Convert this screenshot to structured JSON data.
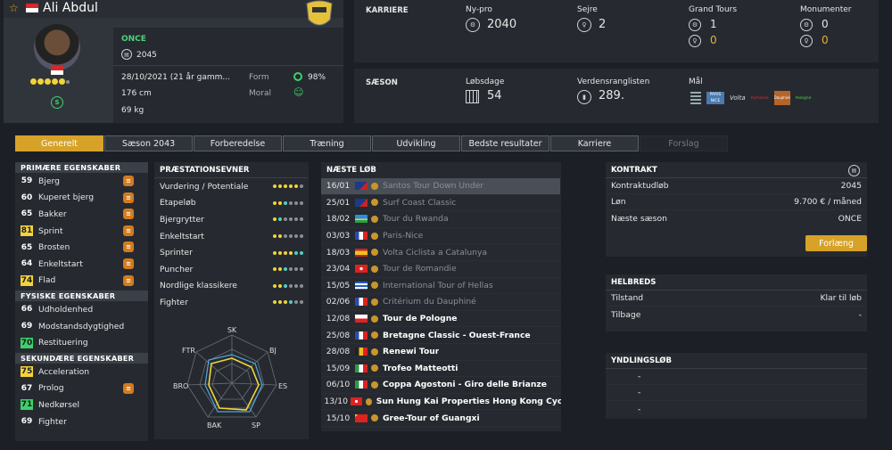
{
  "rider": {
    "name": "Ali Abdul",
    "team": "ONCE",
    "contract_year": "2045",
    "birth": "28/10/2021 (21 år gamm...",
    "height": "176 cm",
    "weight": "69 kg",
    "form_label": "Form",
    "form_value": "98%",
    "moral_label": "Moral"
  },
  "career": {
    "title": "KARRIERE",
    "newpro_label": "Ny-pro",
    "newpro_value": "2040",
    "wins_label": "Sejre",
    "wins_value": "2",
    "grandtours_label": "Grand Tours",
    "grandtours_a": "1",
    "grandtours_b": "0",
    "monuments_label": "Monumenter",
    "monuments_a": "0",
    "monuments_b": "0"
  },
  "season": {
    "title": "SÆSON",
    "racedays_label": "Løbsdage",
    "racedays_value": "54",
    "ranking_label": "Verdensranglisten",
    "ranking_value": "289.",
    "goals_label": "Mål"
  },
  "tabs": [
    "Generelt",
    "Sæson 2043",
    "Forberedelse",
    "Træning",
    "Udvikling",
    "Bedste resultater",
    "Karriere",
    "Forslag"
  ],
  "attributes": {
    "primary_title": "PRIMÆRE EGENSKABER",
    "primary": [
      {
        "value": "59",
        "label": "Bjerg"
      },
      {
        "value": "60",
        "label": "Kuperet bjerg"
      },
      {
        "value": "65",
        "label": "Bakker"
      },
      {
        "value": "81",
        "label": "Sprint"
      },
      {
        "value": "65",
        "label": "Brosten"
      },
      {
        "value": "64",
        "label": "Enkeltstart"
      },
      {
        "value": "74",
        "label": "Flad"
      }
    ],
    "physical_title": "FYSISKE EGENSKABER",
    "physical": [
      {
        "value": "66",
        "label": "Udholdenhed"
      },
      {
        "value": "69",
        "label": "Modstandsdygtighed"
      },
      {
        "value": "70",
        "label": "Restituering"
      }
    ],
    "secondary_title": "SEKUNDÆRE EGENSKABER",
    "secondary": [
      {
        "value": "75",
        "label": "Acceleration"
      },
      {
        "value": "67",
        "label": "Prolog"
      },
      {
        "value": "71",
        "label": "Nedkørsel"
      },
      {
        "value": "69",
        "label": "Fighter"
      }
    ]
  },
  "performance": {
    "title": "PRÆSTATIONSEVNER",
    "rows": [
      "Vurdering / Potentiale",
      "Etapeløb",
      "Bjergrytter",
      "Enkeltstart",
      "Sprinter",
      "Puncher",
      "Nordlige klassikere",
      "Fighter"
    ],
    "radar_labels": [
      "SK",
      "BJ",
      "ES",
      "SP",
      "BAK",
      "BRO",
      "FTR"
    ]
  },
  "races": {
    "title": "NÆSTE LØB",
    "items": [
      {
        "date": "16/01",
        "name": "Santos Tour Down Under"
      },
      {
        "date": "25/01",
        "name": "Surf Coast Classic"
      },
      {
        "date": "18/02",
        "name": "Tour du Rwanda"
      },
      {
        "date": "03/03",
        "name": "Paris-Nice"
      },
      {
        "date": "18/03",
        "name": "Volta Ciclista a Catalunya"
      },
      {
        "date": "23/04",
        "name": "Tour de Romandie"
      },
      {
        "date": "15/05",
        "name": "International Tour of Hellas"
      },
      {
        "date": "02/06",
        "name": "Critérium du Dauphiné"
      },
      {
        "date": "12/08",
        "name": "Tour de Pologne"
      },
      {
        "date": "25/08",
        "name": "Bretagne Classic - Ouest-France"
      },
      {
        "date": "28/08",
        "name": "Renewi Tour"
      },
      {
        "date": "15/09",
        "name": "Trofeo Matteotti"
      },
      {
        "date": "06/10",
        "name": "Coppa Agostoni - Giro delle Brianze"
      },
      {
        "date": "13/10",
        "name": "Sun Hung Kai Properties Hong Kong Cycloth.."
      },
      {
        "date": "15/10",
        "name": "Gree-Tour of Guangxi"
      }
    ]
  },
  "contract": {
    "title": "KONTRAKT",
    "rows": [
      {
        "k": "Kontraktudløb",
        "v": "2045"
      },
      {
        "k": "Løn",
        "v": "9.700 € / måned"
      },
      {
        "k": "Næste sæson",
        "v": "ONCE"
      }
    ],
    "extend_label": "Forlæng"
  },
  "health": {
    "title": "HELBREDS",
    "rows": [
      {
        "k": "Tilstand",
        "v": "Klar til løb"
      },
      {
        "k": "Tilbage",
        "v": "-"
      }
    ]
  },
  "favorites": {
    "title": "YNDLINGSLØB",
    "rows": [
      "-",
      "-",
      "-"
    ]
  },
  "goals_logos": [
    "PARIS NICE",
    "Volta",
    "Romandie",
    "Dauphiné",
    "Pologne"
  ]
}
